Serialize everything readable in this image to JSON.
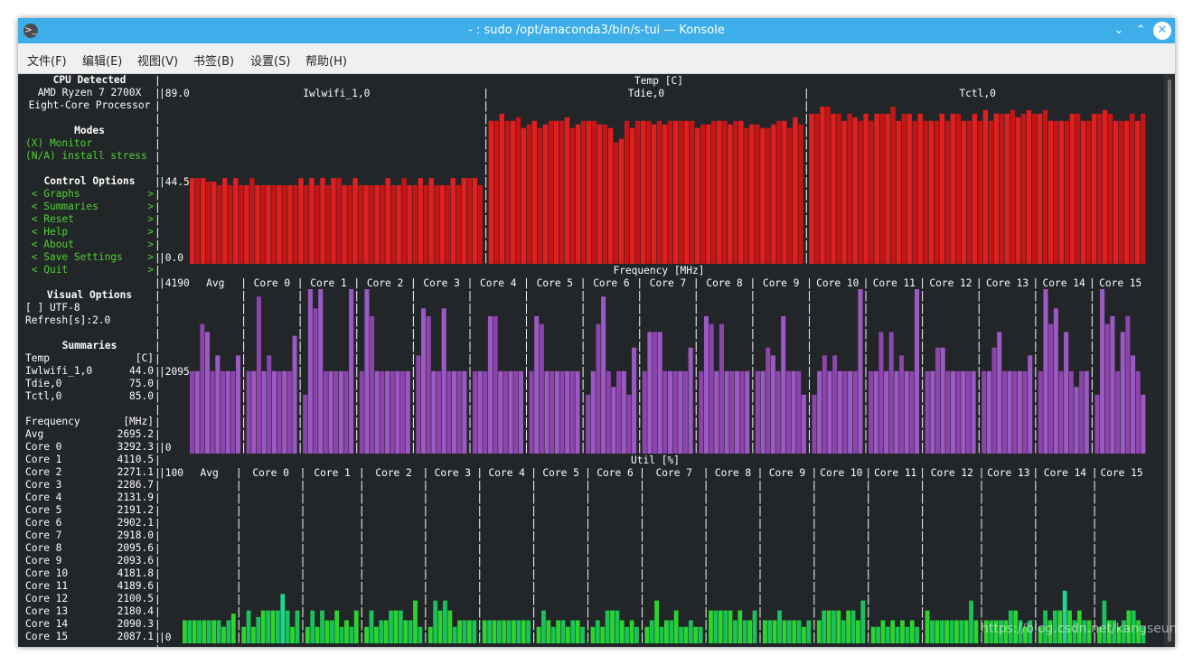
{
  "window": {
    "title": "- : sudo /opt/anaconda3/bin/s-tui — Konsole",
    "minimize_symbol": "⌄",
    "maximize_symbol": "⌃",
    "close_symbol": "✕",
    "app_icon": "terminal-icon"
  },
  "menu": [
    "文件(F)",
    "编辑(E)",
    "视图(V)",
    "书签(B)",
    "设置(S)",
    "帮助(H)"
  ],
  "sidebar": {
    "cpu_title": "CPU Detected",
    "cpu_line1": "AMD Ryzen 7 2700X",
    "cpu_line2": "Eight-Core Processor",
    "modes_title": "Modes",
    "mode_monitor": "(X) Monitor",
    "mode_stress": "(N/A) install stress",
    "control_title": "Control Options",
    "controls": [
      "Graphs",
      "Summaries",
      "Reset",
      "Help",
      "About",
      "Save Settings",
      "Quit"
    ],
    "visual_title": "Visual Options",
    "utf8": "[ ] UTF-8",
    "refresh": "Refresh[s]:2.0",
    "summaries_title": "Summaries",
    "temp_header": {
      "label": "Temp",
      "unit": "[C]"
    },
    "temp_rows": [
      {
        "label": "Iwlwifi_1,0",
        "value": "44.0"
      },
      {
        "label": "Tdie,0",
        "value": "75.0"
      },
      {
        "label": "Tctl,0",
        "value": "85.0"
      }
    ],
    "freq_header": {
      "label": "Frequency",
      "unit": "[MHz]"
    },
    "freq_rows": [
      {
        "label": "Avg",
        "value": "2695.2"
      },
      {
        "label": "Core 0",
        "value": "3292.3"
      },
      {
        "label": "Core 1",
        "value": "4110.5"
      },
      {
        "label": "Core 2",
        "value": "2271.1"
      },
      {
        "label": "Core 3",
        "value": "2286.7"
      },
      {
        "label": "Core 4",
        "value": "2131.9"
      },
      {
        "label": "Core 5",
        "value": "2191.2"
      },
      {
        "label": "Core 6",
        "value": "2902.1"
      },
      {
        "label": "Core 7",
        "value": "2918.0"
      },
      {
        "label": "Core 8",
        "value": "2095.6"
      },
      {
        "label": "Core 9",
        "value": "2093.6"
      },
      {
        "label": "Core 10",
        "value": "4181.8"
      },
      {
        "label": "Core 11",
        "value": "4189.6"
      },
      {
        "label": "Core 12",
        "value": "2100.5"
      },
      {
        "label": "Core 13",
        "value": "2180.4"
      },
      {
        "label": "Core 14",
        "value": "2090.3"
      },
      {
        "label": "Core 15",
        "value": "2087.1"
      }
    ]
  },
  "graphs": {
    "temp": {
      "title": "Temp [C]",
      "y_top": "89.0",
      "y_mid": "44.5",
      "y_bottom": "0.0",
      "series": [
        {
          "name": "Iwlwifi_1,0",
          "values": [
            48,
            48,
            48,
            46,
            46,
            44,
            48,
            44,
            48,
            44,
            44,
            48,
            44,
            44,
            44,
            44,
            44,
            44,
            44,
            44,
            48,
            44,
            48,
            44,
            48,
            44,
            48,
            48,
            44,
            44,
            48,
            44,
            44,
            44,
            44,
            44,
            48,
            44,
            44,
            48,
            44,
            44,
            48,
            44,
            48,
            44,
            44,
            44,
            48,
            44,
            48,
            48,
            48,
            44
          ]
        },
        {
          "name": "Tdie,0",
          "values": [
            80,
            80,
            84,
            80,
            80,
            82,
            76,
            78,
            80,
            76,
            78,
            80,
            80,
            80,
            82,
            76,
            78,
            80,
            80,
            80,
            78,
            78,
            76,
            68,
            70,
            80,
            76,
            80,
            80,
            80,
            78,
            80,
            78,
            80,
            80,
            80,
            80,
            80,
            76,
            78,
            78,
            80,
            80,
            80,
            78,
            80,
            80,
            76,
            78,
            78,
            76,
            76,
            78,
            80,
            80,
            76,
            82,
            78
          ]
        },
        {
          "name": "Tctl,0",
          "values": [
            84,
            84,
            88,
            88,
            84,
            84,
            80,
            84,
            82,
            80,
            84,
            80,
            84,
            84,
            84,
            88,
            80,
            84,
            84,
            80,
            84,
            80,
            80,
            80,
            84,
            80,
            84,
            84,
            80,
            80,
            84,
            80,
            86,
            80,
            84,
            84,
            84,
            86,
            82,
            84,
            86,
            84,
            84,
            86,
            80,
            80,
            80,
            80,
            84,
            84,
            80,
            80,
            84,
            84,
            86,
            84,
            80,
            80,
            80,
            84,
            80,
            84
          ]
        }
      ]
    },
    "freq": {
      "title": "Frequency [MHz]",
      "y_top": "4190",
      "y_mid": "2095",
      "y_bottom": "0",
      "series": [
        {
          "name": "Avg",
          "values": [
            2100,
            2100,
            3300,
            3100,
            2100,
            2500,
            2100,
            2100,
            2100,
            2500
          ]
        },
        {
          "name": "Core 0",
          "values": [
            2100,
            2100,
            4000,
            2100,
            2500,
            2100,
            2100,
            2100,
            2100,
            3000
          ]
        },
        {
          "name": "Core 1",
          "values": [
            1500,
            4190,
            3700,
            4190,
            2100,
            2100,
            2100,
            2100,
            2100,
            4190
          ]
        },
        {
          "name": "Core 2",
          "values": [
            2100,
            4190,
            3500,
            2100,
            2100,
            2100,
            2100,
            2100,
            2100,
            2100
          ]
        },
        {
          "name": "Core 3",
          "values": [
            2500,
            3700,
            3500,
            2100,
            2100,
            3700,
            2100,
            2100,
            2100,
            2100
          ]
        },
        {
          "name": "Core 4",
          "values": [
            2100,
            2100,
            2100,
            3500,
            3500,
            2100,
            2100,
            2100,
            2100,
            2100
          ]
        },
        {
          "name": "Core 5",
          "values": [
            2100,
            3500,
            3300,
            2100,
            2100,
            2100,
            2100,
            2100,
            2100,
            2100
          ]
        },
        {
          "name": "Core 6",
          "values": [
            1500,
            2100,
            3300,
            4000,
            2100,
            1700,
            2100,
            2100,
            1500,
            2700
          ]
        },
        {
          "name": "Core 7",
          "values": [
            2100,
            3100,
            3100,
            3100,
            2100,
            2100,
            2100,
            2100,
            2100,
            2700
          ]
        },
        {
          "name": "Core 8",
          "values": [
            2100,
            3500,
            3300,
            2100,
            3300,
            2100,
            2100,
            2100,
            2100,
            2100
          ]
        },
        {
          "name": "Core 9",
          "values": [
            2100,
            2100,
            2700,
            2500,
            2100,
            3500,
            2100,
            2100,
            2100,
            1500
          ]
        },
        {
          "name": "Core 10",
          "values": [
            1500,
            2100,
            2500,
            2100,
            2500,
            2100,
            2100,
            2100,
            2100,
            4190
          ]
        },
        {
          "name": "Core 11",
          "values": [
            2100,
            2100,
            3100,
            2100,
            3100,
            2100,
            2500,
            2100,
            2100,
            4190
          ]
        },
        {
          "name": "Core 12",
          "values": [
            2100,
            2100,
            2700,
            2700,
            2100,
            2100,
            2100,
            2100,
            2100,
            2100
          ]
        },
        {
          "name": "Core 13",
          "values": [
            2100,
            2100,
            2700,
            3100,
            2100,
            2100,
            2100,
            2100,
            2100,
            2500
          ]
        },
        {
          "name": "Core 14",
          "values": [
            2100,
            4190,
            3300,
            3700,
            2100,
            3100,
            2100,
            1700,
            2100,
            2100
          ]
        },
        {
          "name": "Core 15",
          "values": [
            1500,
            4190,
            3300,
            3500,
            2100,
            3100,
            3500,
            2500,
            2100,
            1500
          ]
        }
      ]
    },
    "util": {
      "title": "Util [%]",
      "y_top": "100",
      "y_bottom": "0",
      "series": [
        {
          "name": "Avg",
          "values": [
            14,
            14,
            14,
            14,
            14,
            14,
            14,
            14,
            10,
            14,
            18
          ]
        },
        {
          "name": "Core 0",
          "values": [
            10,
            20,
            10,
            16,
            20,
            20,
            20,
            20,
            30,
            20,
            10,
            20
          ]
        },
        {
          "name": "Core 1",
          "values": [
            10,
            20,
            10,
            20,
            14,
            14,
            20,
            10,
            14,
            10,
            20
          ]
        },
        {
          "name": "Core 2",
          "values": [
            10,
            20,
            10,
            14,
            14,
            20,
            20,
            20,
            14,
            14,
            26,
            10
          ]
        },
        {
          "name": "Core 3",
          "values": [
            10,
            26,
            20,
            26,
            20,
            10,
            14,
            14,
            14,
            14
          ]
        },
        {
          "name": "Core 4",
          "values": [
            14,
            14,
            14,
            14,
            14,
            14,
            14,
            14,
            14,
            14
          ]
        },
        {
          "name": "Core 5",
          "values": [
            10,
            20,
            14,
            10,
            14,
            14,
            10,
            14,
            14,
            10
          ]
        },
        {
          "name": "Core 6",
          "values": [
            10,
            14,
            10,
            20,
            20,
            20,
            14,
            10,
            14,
            10
          ]
        },
        {
          "name": "Core 7",
          "values": [
            10,
            14,
            26,
            10,
            14,
            14,
            20,
            10,
            10,
            14,
            10,
            10
          ]
        },
        {
          "name": "Core 8",
          "values": [
            20,
            20,
            20,
            20,
            20,
            14,
            20,
            14,
            14,
            20
          ]
        },
        {
          "name": "Core 9",
          "values": [
            14,
            14,
            14,
            20,
            14,
            14,
            14,
            14,
            10,
            14
          ]
        },
        {
          "name": "Core 10",
          "values": [
            14,
            20,
            20,
            20,
            20,
            14,
            20,
            20,
            14,
            26
          ]
        },
        {
          "name": "Core 11",
          "values": [
            10,
            10,
            14,
            10,
            14,
            10,
            14,
            10,
            14,
            10
          ]
        },
        {
          "name": "Core 12",
          "values": [
            20,
            14,
            14,
            14,
            14,
            14,
            14,
            14,
            14,
            26,
            14
          ]
        },
        {
          "name": "Core 13",
          "values": [
            14,
            14,
            14,
            14,
            14,
            20,
            20,
            14,
            10,
            14
          ]
        },
        {
          "name": "Core 14",
          "values": [
            10,
            20,
            14,
            20,
            20,
            32,
            20,
            14,
            20,
            14,
            14
          ]
        },
        {
          "name": "Core 15",
          "values": [
            10,
            26,
            14,
            14,
            10,
            14,
            20,
            20,
            14,
            10
          ]
        }
      ]
    }
  },
  "colors": {
    "temp": "#e01f1f",
    "temp_alt": "#c41616",
    "freq": "#8e44ad",
    "freq_alt": "#9b59c4",
    "util": "#2cd52c",
    "util_alt": "#19c35a",
    "util_hi": "#1fd68e"
  },
  "watermark": "https://blog.csdn.net/kangseun"
}
